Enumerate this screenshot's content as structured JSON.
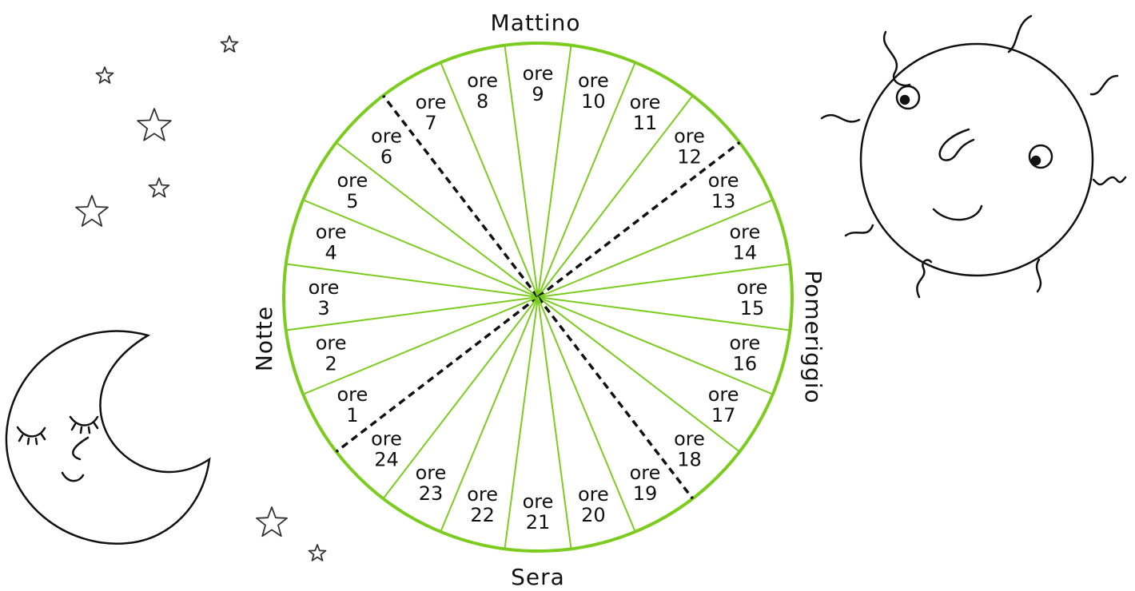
{
  "labels": {
    "top": "Mattino",
    "right": "Pomeriggio",
    "bottom": "Sera",
    "left": "Notte"
  },
  "hour_word": "ore",
  "hours": [
    "1",
    "2",
    "3",
    "4",
    "5",
    "6",
    "7",
    "8",
    "9",
    "10",
    "11",
    "12",
    "13",
    "14",
    "15",
    "16",
    "17",
    "18",
    "19",
    "20",
    "21",
    "22",
    "23",
    "24"
  ],
  "divider_hours": [
    6,
    12,
    18,
    24
  ],
  "colors": {
    "wheel": "#7ccc1f",
    "ink": "#111111",
    "divider": "#111111"
  },
  "icons": {
    "sun": "sun-face-icon",
    "moon": "sleeping-moon-icon",
    "stars": "star-icon"
  }
}
